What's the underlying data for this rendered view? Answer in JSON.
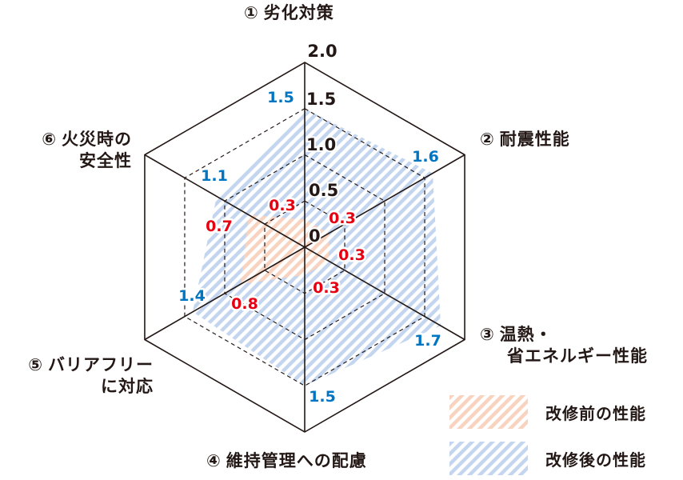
{
  "chart_data": {
    "type": "radar",
    "title": "",
    "axes": [
      {
        "id": 1,
        "num": "①",
        "label": "劣化対策"
      },
      {
        "id": 2,
        "num": "②",
        "label": "耐震性能"
      },
      {
        "id": 3,
        "num": "③",
        "label": "温熱・省エネルギー性能"
      },
      {
        "id": 4,
        "num": "④",
        "label": "維持管理への配慮"
      },
      {
        "id": 5,
        "num": "⑤",
        "label": "バリアフリーに対応"
      },
      {
        "id": 6,
        "num": "⑥",
        "label": "火災時の安全性"
      }
    ],
    "scale": {
      "min": 0,
      "max": 2.0,
      "ticks": [
        "0",
        "0.5",
        "1.0",
        "1.5",
        "2.0"
      ]
    },
    "series": [
      {
        "name": "改修前の性能",
        "color": "#f7c9b0",
        "label_color": "#e60012",
        "values": [
          0.3,
          0.3,
          0.3,
          0.3,
          0.8,
          0.7
        ]
      },
      {
        "name": "改修後の性能",
        "color": "#b9cfed",
        "label_color": "#0075c2",
        "values": [
          1.5,
          1.6,
          1.7,
          1.5,
          1.4,
          1.1
        ]
      }
    ],
    "legend_position": "bottom-right",
    "grid": "dashed hexagons at 0.5 intervals"
  },
  "labels": {
    "axis1_num": "①",
    "axis1_text": "劣化対策",
    "axis2_num": "②",
    "axis2_text": "耐震性能",
    "axis3_num": "③",
    "axis3_line1": "温熱・",
    "axis3_line2": "省エネルギー性能",
    "axis4_num": "④",
    "axis4_text": "維持管理への配慮",
    "axis5_num": "⑤",
    "axis5_line1": "バリアフリー",
    "axis5_line2": "に対応",
    "axis6_num": "⑥",
    "axis6_line1": "火災時の",
    "axis6_line2": "安全性"
  },
  "legend": {
    "before_label": "改修前の性能",
    "after_label": "改修後の性能"
  }
}
